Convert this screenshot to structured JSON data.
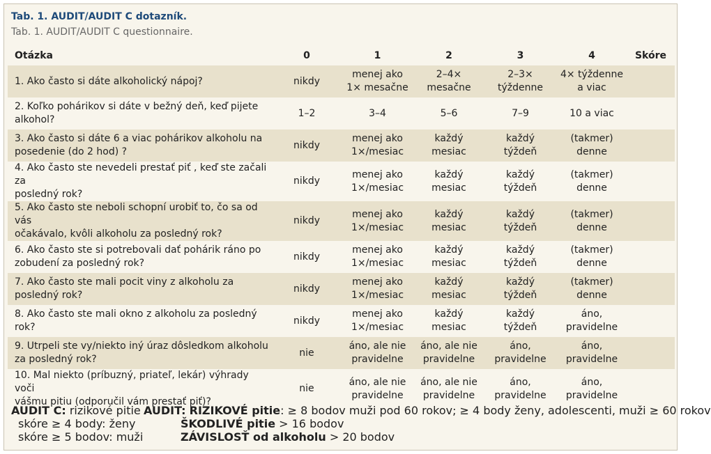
{
  "title": "Tab. 1. AUDIT/AUDIT C dotazník.",
  "subtitle": "Tab. 1. AUDIT/AUDIT C questionnaire.",
  "headers": [
    "Otázka",
    "0",
    "1",
    "2",
    "3",
    "4",
    "Skóre"
  ],
  "rows": [
    [
      "1. Ako často si dáte alkoholický nápoj?",
      "nikdy",
      "menej ako\n1× mesačne",
      "2–4×\nmesačne",
      "2–3×\ntýždenne",
      "4× týždenne\na viac",
      ""
    ],
    [
      "2. Koľko pohárikov si dáte v bežný deň, keď pijete\nalkohol?",
      "1–2",
      "3–4",
      "5–6",
      "7–9",
      "10 a viac",
      ""
    ],
    [
      "3. Ako často si dáte 6 a viac pohárikov alkoholu na\nposedenie (do 2 hod) ?",
      "nikdy",
      "menej ako\n1×/mesiac",
      "každý\nmesiac",
      "každý\ntýždeň",
      "(takmer)\ndenne",
      ""
    ],
    [
      "4. Ako často ste nevedeli prestať piť , keď ste začali za\nposledný rok?",
      "nikdy",
      "menej ako\n1×/mesiac",
      "každý\nmesiac",
      "každý\ntýždeň",
      "(takmer)\ndenne",
      ""
    ],
    [
      "5. Ako často ste neboli schopní urobiť to, čo sa od vás\nočakávalo, kvôli alkoholu za posledný rok?",
      "nikdy",
      "menej ako\n1×/mesiac",
      "každý\nmesiac",
      "každý\ntýždeň",
      "(takmer)\ndenne",
      ""
    ],
    [
      "6. Ako často ste si potrebovali dať pohárik ráno po\nzobudení za posledný rok?",
      "nikdy",
      "menej ako\n1×/mesiac",
      "každý\nmesiac",
      "každý\ntýždeň",
      "(takmer)\ndenne",
      ""
    ],
    [
      "7. Ako často ste mali pocit viny z alkoholu za\nposledný rok?",
      "nikdy",
      "menej ako\n1×/mesiac",
      "každý\nmesiac",
      "každý\ntýždeň",
      "(takmer)\ndenne",
      ""
    ],
    [
      "8. Ako často ste mali okno z alkoholu za posledný\nrok?",
      "nikdy",
      "menej ako\n1×/mesiac",
      "každý\nmesiac",
      "každý\ntýždeň",
      "áno,\npravidelne",
      ""
    ],
    [
      "9. Utrpeli ste vy/niekto iný úraz dôsledkom alkoholu\nza posledný rok?",
      "nie",
      "",
      "áno, ale nie\npravidelne",
      "",
      "áno,\npravidelne",
      ""
    ],
    [
      "10. Mal niekto (príbuzný, priateľ, lekár) výhrady voči\nvášmu pitiu (odporučil vám prestať piť)?",
      "nie",
      "",
      "áno, ale nie\npravidelne",
      "",
      "áno,\npravidelne",
      ""
    ]
  ],
  "row9_extra": [
    "áno, ale nie\npravidelne",
    "áno,\npravidelne"
  ],
  "footer": {
    "auditc_label": "AUDIT C:",
    "auditc_text": " rizikové pitie",
    "auditc_line2": "skóre ≥ 4 body: ženy",
    "auditc_line3": "skóre ≥ 5 bodov: muži",
    "audit_label": "AUDIT:",
    "risk_label": "RIZIKOVÉ pitie",
    "risk_text": ":  ≥ 8 bodov muži pod 60 rokov; ≥ 4 body ženy, adolescenti, muži ≥ 60 rokov",
    "harm_label": "ŠKODLIVÉ pitie",
    "harm_text": "  > 16 bodov",
    "dep_label": "ZÁVISLOSŤ od alkoholu",
    "dep_text": " > 20 bodov"
  },
  "colors": {
    "title": "#1f4b7a",
    "shade": "#e8e1cc",
    "background": "#f8f5ec"
  }
}
